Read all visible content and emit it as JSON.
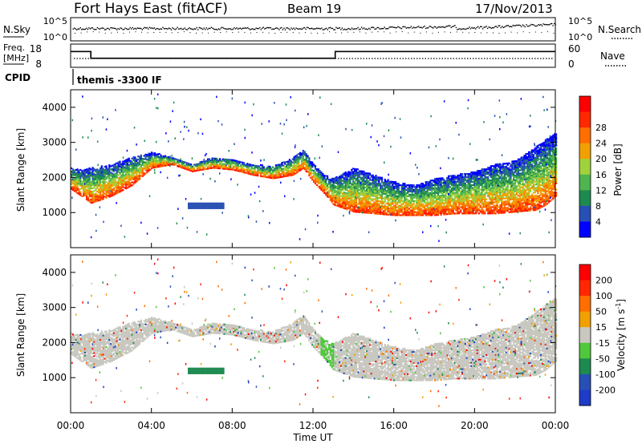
{
  "header": {
    "title": "Fort Hays East (fitACF)",
    "beam": "Beam 19",
    "date": "17/Nov/2013"
  },
  "noise_panel": {
    "left_label": "N.Sky",
    "right_label": "N.Search",
    "left_ticks": [
      "10^5",
      "10^0"
    ],
    "right_ticks": [
      "10^5",
      "10^0"
    ]
  },
  "freq_panel": {
    "left_label_1": "Freq.",
    "left_label_2": "[MHz]",
    "right_label": "Nave",
    "left_ticks": [
      "18",
      "8"
    ],
    "right_ticks": [
      "60",
      "0"
    ],
    "freq_steps": [
      {
        "t_start": 0.0,
        "t_end": 1.0,
        "mhz": 15.5
      },
      {
        "t_start": 1.0,
        "t_end": 13.1,
        "mhz": 11.5
      },
      {
        "t_start": 13.1,
        "t_end": 24.0,
        "mhz": 15.5
      }
    ]
  },
  "cpid": {
    "label": "CPID",
    "value": "themis -3300 IF"
  },
  "colors": {
    "power_scale": [
      "#0000ff",
      "#2850b4",
      "#1e8a50",
      "#50b450",
      "#a0d23c",
      "#f0a000",
      "#ff6e00",
      "#ff2800",
      "#ff0000"
    ],
    "velocity_scale": [
      "#1e3cc8",
      "#2850b4",
      "#1e8a50",
      "#50c83c",
      "#c8c8c0",
      "#f0a000",
      "#ff6e00",
      "#ff2800",
      "#ff0000"
    ],
    "ground_scatter": "#c8c8c0"
  },
  "chart_data": [
    {
      "type": "heatmap",
      "name_panel": "power",
      "ylabel": "Slant Range [km]",
      "xlim": [
        0,
        24
      ],
      "ylim": [
        0,
        4500
      ],
      "y_ticks": [
        "1000",
        "2000",
        "3000",
        "4000"
      ],
      "colorbar_label": "Power [dB]",
      "colorbar_ticks": [
        "4",
        "8",
        "12",
        "16",
        "20",
        "24",
        "28"
      ],
      "scatter_band": {
        "time_h": [
          0,
          0.5,
          1,
          2,
          3,
          4,
          5,
          6,
          7,
          8,
          9,
          10,
          11,
          11.5,
          12,
          12.5,
          13,
          14,
          15,
          16,
          17,
          18,
          19,
          20,
          21,
          22,
          23,
          23.5,
          24
        ],
        "lower_edge_km": [
          1700,
          1500,
          1300,
          1500,
          1800,
          2300,
          2400,
          2200,
          2300,
          2250,
          2100,
          2000,
          2100,
          2300,
          1900,
          1600,
          1250,
          1050,
          1000,
          950,
          950,
          950,
          1000,
          1000,
          1000,
          1050,
          1100,
          1250,
          1500
        ],
        "upper_edge_km": [
          2300,
          2250,
          2300,
          2400,
          2600,
          2750,
          2600,
          2400,
          2600,
          2550,
          2400,
          2350,
          2600,
          2800,
          2400,
          2100,
          2000,
          2300,
          2100,
          1900,
          1800,
          2000,
          2100,
          2200,
          2400,
          2500,
          2900,
          3100,
          3300
        ]
      }
    },
    {
      "type": "heatmap",
      "name_panel": "velocity",
      "ylabel": "Slant Range [km]",
      "xlabel": "Time UT",
      "xlim": [
        0,
        24
      ],
      "ylim": [
        0,
        4500
      ],
      "y_ticks": [
        "1000",
        "2000",
        "3000",
        "4000"
      ],
      "x_ticks": [
        "00:00",
        "04:00",
        "08:00",
        "12:00",
        "16:00",
        "20:00",
        "00:00"
      ],
      "colorbar_label": "Velocity [m s",
      "colorbar_label_sup": "-1",
      "colorbar_label_end": "]",
      "colorbar_ticks": [
        "200",
        "100",
        "50",
        "15",
        "-15",
        "-50",
        "-100",
        "-200"
      ]
    }
  ]
}
